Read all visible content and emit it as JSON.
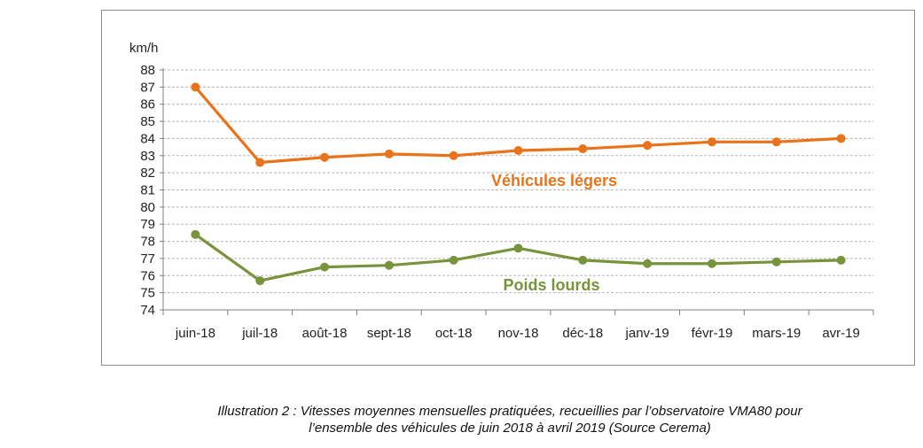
{
  "chart_data": {
    "type": "line",
    "ylabel": "km/h",
    "ylim": [
      74,
      88
    ],
    "yticks": [
      "88",
      "87",
      "86",
      "85",
      "84",
      "83",
      "82",
      "81",
      "80",
      "79",
      "78",
      "77",
      "76",
      "75",
      "74"
    ],
    "categories": [
      "juin-18",
      "juil-18",
      "août-18",
      "sept-18",
      "oct-18",
      "nov-18",
      "déc-18",
      "janv-19",
      "févr-19",
      "mars-19",
      "avr-19"
    ],
    "grid": true,
    "series": [
      {
        "name": "Véhicules légers",
        "color": "#e8731a",
        "values": [
          87.0,
          82.6,
          82.9,
          83.1,
          83.0,
          83.3,
          83.4,
          83.6,
          83.8,
          83.8,
          84.0
        ]
      },
      {
        "name": "Poids lourds",
        "color": "#77933c",
        "values": [
          78.4,
          75.7,
          76.5,
          76.6,
          76.9,
          77.6,
          76.9,
          76.7,
          76.7,
          76.8,
          76.9
        ]
      }
    ]
  },
  "caption": {
    "line1": "Illustration 2 : Vitesses moyennes mensuelles pratiquées, recueillies par l’observatoire VMA80 pour",
    "line2": "l’ensemble des véhicules de juin 2018 à avril 2019 (Source Cerema)"
  }
}
